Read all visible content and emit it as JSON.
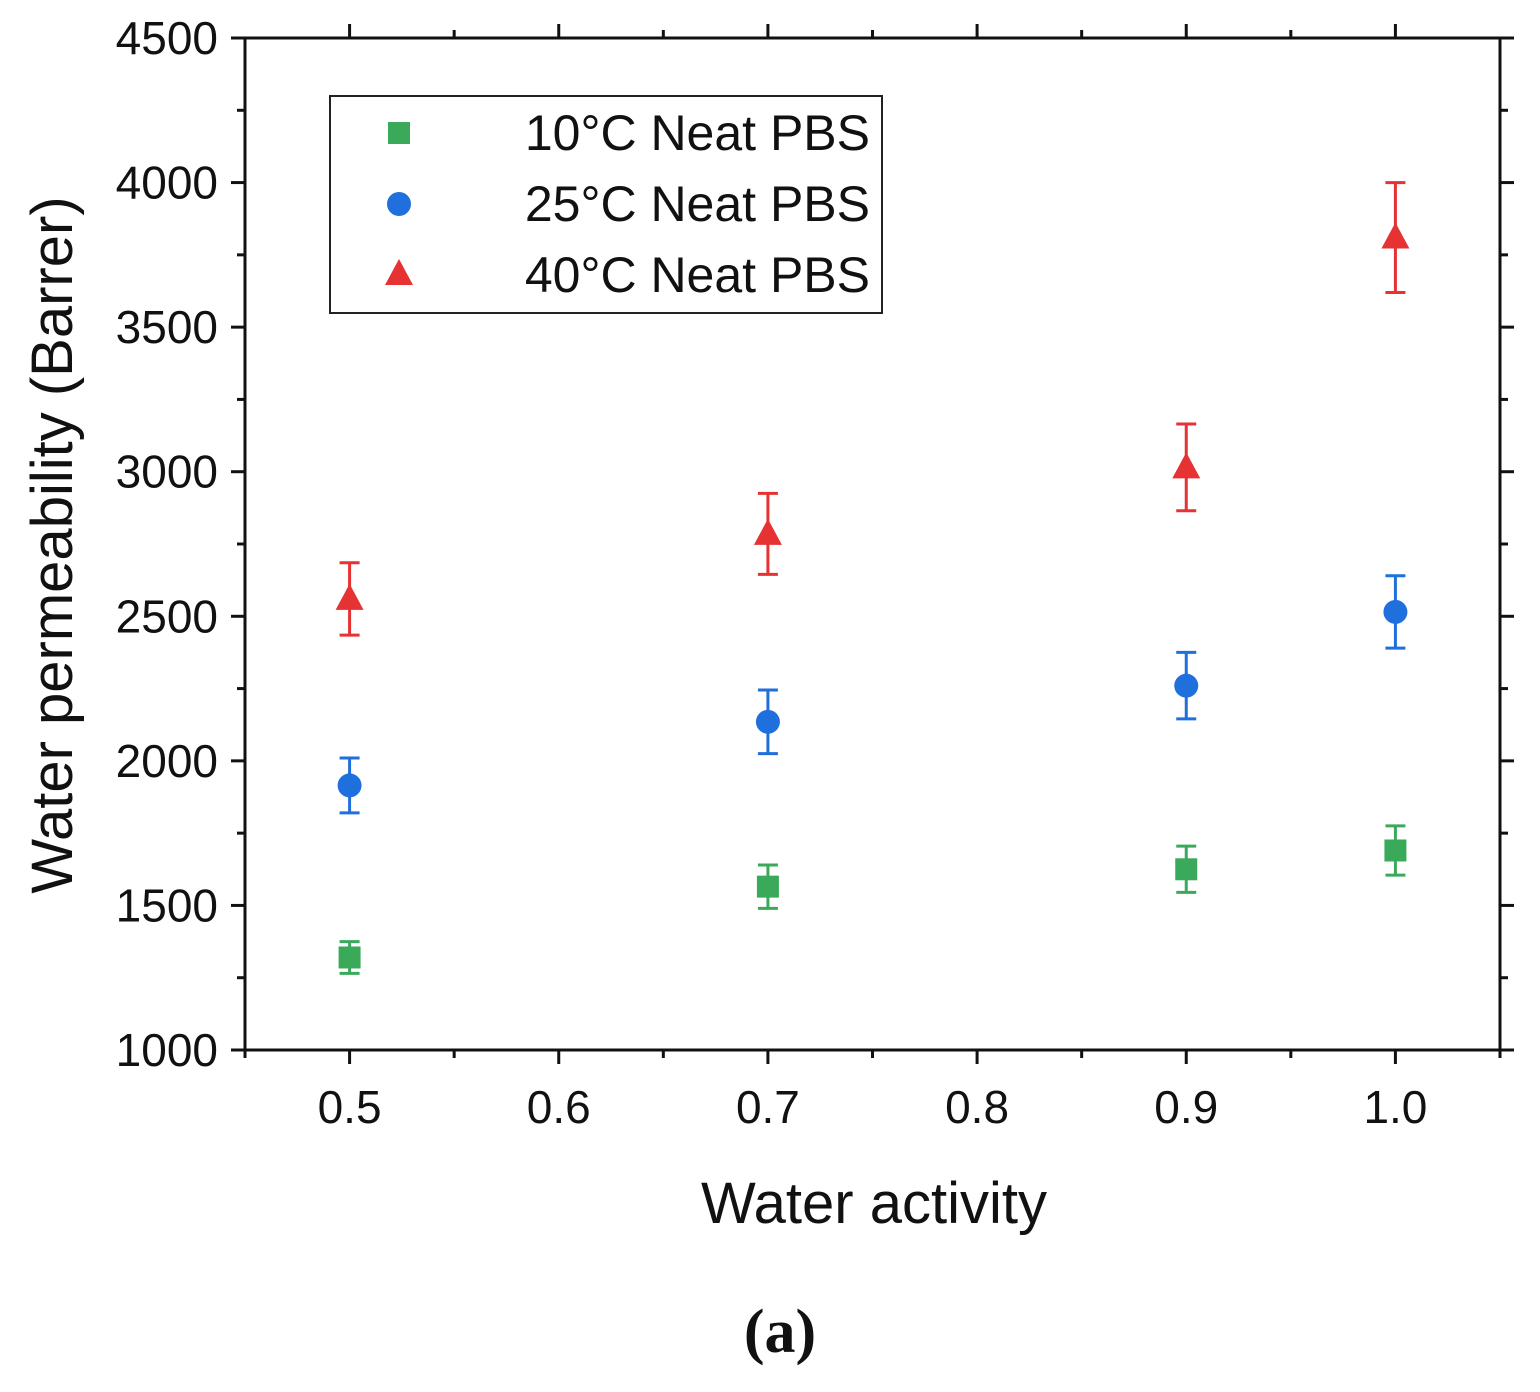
{
  "chart_data": {
    "type": "scatter",
    "title": "",
    "xlabel": "Water activity",
    "ylabel": "Water permeability (Barrer)",
    "xlim": [
      0.45,
      1.05
    ],
    "ylim": [
      1000,
      4500
    ],
    "xticks": [
      0.5,
      0.6,
      0.7,
      0.8,
      0.9,
      1.0
    ],
    "xtick_labels": [
      "0.5",
      "0.6",
      "0.7",
      "0.8",
      "0.9",
      "1.0"
    ],
    "yticks": [
      1000,
      1500,
      2000,
      2500,
      3000,
      3500,
      4000,
      4500
    ],
    "ytick_labels": [
      "1000",
      "1500",
      "2000",
      "2500",
      "3000",
      "3500",
      "4000",
      "4500"
    ],
    "grid": false,
    "legend_position": "top-left",
    "series": [
      {
        "name": "10°C Neat PBS",
        "marker": "square",
        "color": "#3aaa5a",
        "x": [
          0.5,
          0.7,
          0.9,
          1.0
        ],
        "y": [
          1320,
          1565,
          1625,
          1690
        ],
        "error": [
          55,
          75,
          80,
          85
        ]
      },
      {
        "name": "25°C Neat PBS",
        "marker": "circle",
        "color": "#1f6fdc",
        "x": [
          0.5,
          0.7,
          0.9,
          1.0
        ],
        "y": [
          1915,
          2135,
          2260,
          2515
        ],
        "error": [
          95,
          110,
          115,
          125
        ]
      },
      {
        "name": "40°C Neat PBS",
        "marker": "triangle",
        "color": "#e63232",
        "x": [
          0.5,
          0.7,
          0.9,
          1.0
        ],
        "y": [
          2560,
          2785,
          3015,
          3810
        ],
        "error": [
          125,
          140,
          150,
          190
        ]
      }
    ],
    "caption": "(a)"
  }
}
